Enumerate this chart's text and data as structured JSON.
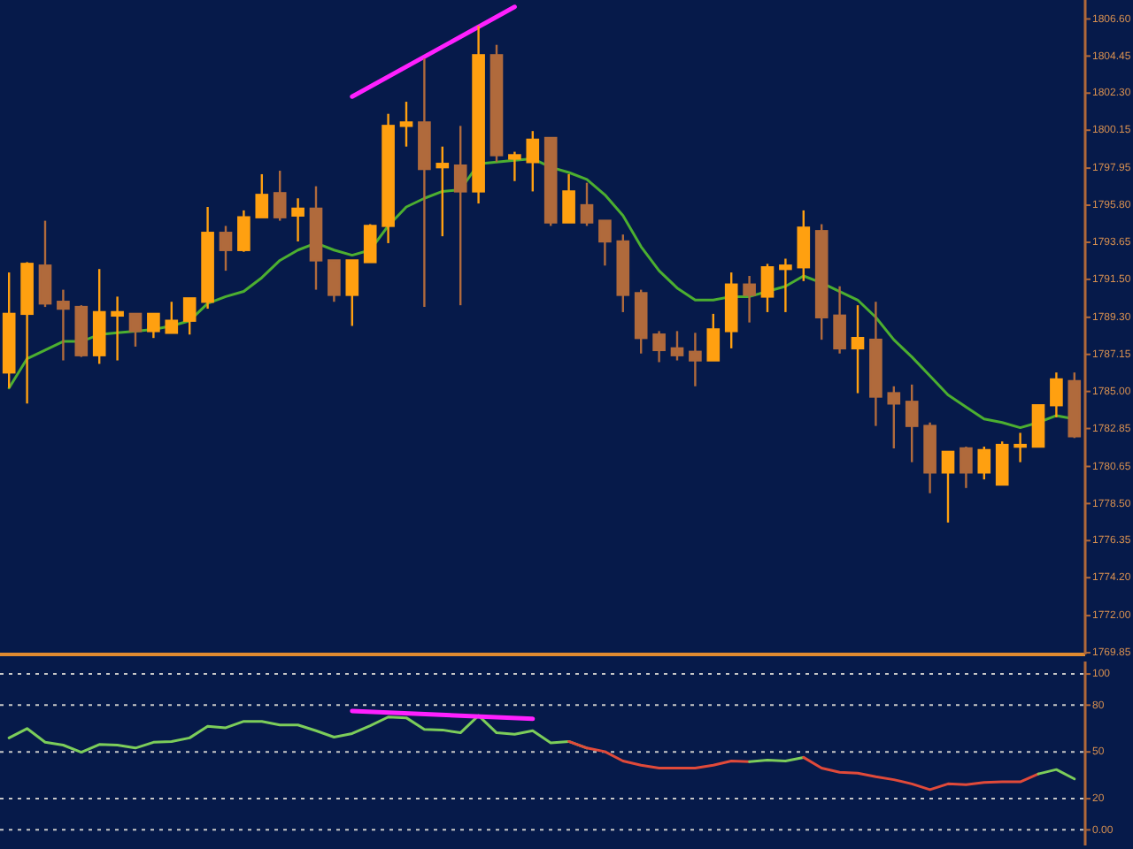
{
  "chart_data": [
    {
      "type": "candlestick",
      "categories": [
        null,
        null,
        null,
        null,
        null,
        null,
        null,
        null,
        null,
        null,
        null,
        null,
        null,
        null,
        null,
        null,
        null,
        null,
        null,
        null,
        null,
        null,
        null,
        null,
        null,
        null,
        null,
        null,
        null,
        null,
        null,
        null,
        null,
        null,
        null,
        null,
        null,
        null,
        null,
        null,
        null,
        null,
        null,
        null,
        null,
        null,
        null,
        null,
        null,
        null,
        null,
        null,
        null,
        null,
        null,
        null,
        null,
        null,
        null,
        null
      ],
      "ylim": [
        1769.75,
        1807.7
      ],
      "tick_labels": "y",
      "yticks": [
        {
          "value": 1806.6,
          "label": "1806.60"
        },
        {
          "value": 1804.45,
          "label": "1804.45"
        },
        {
          "value": 1802.3,
          "label": "1802.30"
        },
        {
          "value": 1800.15,
          "label": "1800.15"
        },
        {
          "value": 1797.95,
          "label": "1797.95"
        },
        {
          "value": 1795.8,
          "label": "1795.80"
        },
        {
          "value": 1793.65,
          "label": "1793.65"
        },
        {
          "value": 1791.5,
          "label": "1791.50"
        },
        {
          "value": 1789.3,
          "label": "1789.30"
        },
        {
          "value": 1787.15,
          "label": "1787.15"
        },
        {
          "value": 1785,
          "label": "1785.00"
        },
        {
          "value": 1782.85,
          "label": "1782.85"
        },
        {
          "value": 1780.65,
          "label": "1780.65"
        },
        {
          "value": 1778.5,
          "label": "1778.50"
        },
        {
          "value": 1776.35,
          "label": "1776.35"
        },
        {
          "value": 1774.2,
          "label": "1774.20"
        },
        {
          "value": 1772,
          "label": "1772.00"
        },
        {
          "value": 1769.85,
          "label": "1769.85"
        }
      ],
      "ohlc": [
        [
          1786.1,
          1791.9,
          1785.2,
          1789.5
        ],
        [
          1789.5,
          1792.5,
          1784.3,
          1792.4
        ],
        [
          1792.3,
          1794.9,
          1789.9,
          1790.1
        ],
        [
          1790.2,
          1790.9,
          1786.8,
          1789.8
        ],
        [
          1789.9,
          1790.0,
          1787.0,
          1787.1
        ],
        [
          1787.1,
          1792.1,
          1786.6,
          1789.6
        ],
        [
          1789.4,
          1790.5,
          1786.8,
          1789.6
        ],
        [
          1789.5,
          1789.5,
          1787.6,
          1788.5
        ],
        [
          1788.5,
          1789.5,
          1788.1,
          1789.5
        ],
        [
          1788.4,
          1790.2,
          1788.4,
          1789.1
        ],
        [
          1789.1,
          1790.4,
          1788.3,
          1790.4
        ],
        [
          1790.2,
          1795.7,
          1789.8,
          1794.2
        ],
        [
          1794.2,
          1794.6,
          1792.0,
          1793.2
        ],
        [
          1793.2,
          1795.5,
          1793.1,
          1795.1
        ],
        [
          1795.1,
          1797.6,
          1795.1,
          1796.4
        ],
        [
          1796.5,
          1797.8,
          1794.9,
          1795.1
        ],
        [
          1795.2,
          1796.2,
          1793.7,
          1795.6
        ],
        [
          1795.6,
          1796.9,
          1790.9,
          1792.6
        ],
        [
          1792.6,
          1792.6,
          1790.2,
          1790.6
        ],
        [
          1790.6,
          1792.6,
          1788.8,
          1792.6
        ],
        [
          1792.5,
          1794.7,
          1792.5,
          1794.6
        ],
        [
          1794.6,
          1801.1,
          1793.6,
          1800.4
        ],
        [
          1800.4,
          1801.8,
          1799.2,
          1800.6
        ],
        [
          1800.6,
          1804.3,
          1789.9,
          1797.9
        ],
        [
          1798.0,
          1799.2,
          1794.0,
          1798.2
        ],
        [
          1798.1,
          1800.4,
          1790.0,
          1796.6
        ],
        [
          1796.6,
          1806.2,
          1795.9,
          1804.5
        ],
        [
          1804.5,
          1805.1,
          1798.3,
          1798.7
        ],
        [
          1798.5,
          1798.9,
          1797.2,
          1798.7
        ],
        [
          1798.3,
          1800.1,
          1796.6,
          1799.6
        ],
        [
          1799.7,
          1799.7,
          1794.6,
          1794.8
        ],
        [
          1794.8,
          1797.6,
          1794.8,
          1796.6
        ],
        [
          1795.8,
          1797.1,
          1794.6,
          1794.8
        ],
        [
          1794.9,
          1794.9,
          1792.3,
          1793.7
        ],
        [
          1793.7,
          1794.1,
          1789.6,
          1790.6
        ],
        [
          1790.7,
          1790.9,
          1787.2,
          1788.1
        ],
        [
          1788.3,
          1788.5,
          1786.7,
          1787.4
        ],
        [
          1787.5,
          1788.5,
          1786.8,
          1787.1
        ],
        [
          1787.3,
          1788.4,
          1785.3,
          1786.8
        ],
        [
          1786.8,
          1789.5,
          1786.8,
          1788.6
        ],
        [
          1788.5,
          1791.9,
          1787.5,
          1791.2
        ],
        [
          1791.2,
          1791.7,
          1789.0,
          1790.6
        ],
        [
          1790.5,
          1792.4,
          1789.6,
          1792.2
        ],
        [
          1792.1,
          1792.7,
          1789.6,
          1792.3
        ],
        [
          1792.2,
          1795.5,
          1791.4,
          1794.5
        ],
        [
          1794.3,
          1794.7,
          1788.0,
          1789.3
        ],
        [
          1789.4,
          1791.1,
          1787.2,
          1787.5
        ],
        [
          1787.5,
          1790.0,
          1784.9,
          1788.1
        ],
        [
          1788.0,
          1790.2,
          1783.0,
          1784.7
        ],
        [
          1784.9,
          1785.3,
          1781.7,
          1784.3
        ],
        [
          1784.4,
          1785.4,
          1780.9,
          1783.0
        ],
        [
          1783.0,
          1783.2,
          1779.1,
          1780.3
        ],
        [
          1780.3,
          1781.5,
          1777.4,
          1781.5
        ],
        [
          1781.7,
          1781.8,
          1779.4,
          1780.3
        ],
        [
          1780.3,
          1781.8,
          1779.9,
          1781.6
        ],
        [
          1779.6,
          1782.1,
          1779.6,
          1781.9
        ],
        [
          1781.8,
          1782.6,
          1780.9,
          1781.9
        ],
        [
          1781.8,
          1784.2,
          1781.8,
          1784.2
        ],
        [
          1784.2,
          1786.1,
          1783.5,
          1785.7
        ],
        [
          1785.6,
          1786.1,
          1782.3,
          1782.4
        ]
      ],
      "colors": [
        "#ffa010",
        "#ffa010",
        "#b06a3c",
        "#b06a3c",
        "#b06a3c",
        "#ffa010",
        "#ffa010",
        "#b06a3c",
        "#ffa010",
        "#ffa010",
        "#ffa010",
        "#ffa010",
        "#b06a3c",
        "#ffa010",
        "#ffa010",
        "#b06a3c",
        "#ffa010",
        "#b06a3c",
        "#b06a3c",
        "#ffa010",
        "#ffa010",
        "#ffa010",
        "#ffa010",
        "#b06a3c",
        "#ffa010",
        "#b06a3c",
        "#ffa010",
        "#b06a3c",
        "#ffa010",
        "#ffa010",
        "#b06a3c",
        "#ffa010",
        "#b06a3c",
        "#b06a3c",
        "#b06a3c",
        "#b06a3c",
        "#b06a3c",
        "#b06a3c",
        "#b06a3c",
        "#ffa010",
        "#ffa010",
        "#b06a3c",
        "#ffa010",
        "#ffa010",
        "#ffa010",
        "#b06a3c",
        "#b06a3c",
        "#ffa010",
        "#b06a3c",
        "#b06a3c",
        "#b06a3c",
        "#b06a3c",
        "#ffa010",
        "#b06a3c",
        "#ffa010",
        "#ffa010",
        "#ffa010",
        "#ffa010",
        "#ffa010",
        "#b06a3c"
      ],
      "series": [
        {
          "type": "line",
          "color": "#4caf30",
          "values": [
            1785.2,
            1786.9,
            1787.4,
            1787.9,
            1787.9,
            1788.3,
            1788.4,
            1788.5,
            1788.6,
            1788.8,
            1789.1,
            1790.1,
            1790.5,
            1790.8,
            1791.6,
            1792.6,
            1793.2,
            1793.6,
            1793.2,
            1792.9,
            1793.2,
            1794.6,
            1795.7,
            1796.2,
            1796.6,
            1796.7,
            1798.2,
            1798.3,
            1798.4,
            1798.5,
            1798.0,
            1797.7,
            1797.3,
            1796.4,
            1795.2,
            1793.4,
            1792.0,
            1791.0,
            1790.3,
            1790.3,
            1790.5,
            1790.5,
            1790.8,
            1791.1,
            1791.7,
            1791.3,
            1790.8,
            1790.3,
            1789.3,
            1788.0,
            1787.0,
            1785.9,
            1784.8,
            1784.1,
            1783.4,
            1783.2,
            1782.9,
            1783.2,
            1783.6,
            1783.4
          ]
        },
        {
          "type": "line",
          "color": "#ff20ff",
          "values": [
            null,
            null,
            null,
            null,
            null,
            null,
            null,
            null,
            null,
            null,
            null,
            null,
            null,
            null,
            null,
            null,
            null,
            null,
            null,
            1802.1,
            null,
            null,
            null,
            null,
            null,
            null,
            null,
            null,
            1807.3,
            null,
            null,
            null,
            null,
            null,
            null,
            null,
            null,
            null,
            null,
            null,
            null,
            null,
            null,
            null,
            null,
            null,
            null,
            null,
            null,
            null,
            null,
            null,
            null,
            null,
            null,
            null,
            null,
            null,
            null,
            null
          ]
        }
      ]
    },
    {
      "type": "line",
      "categories": [
        null,
        null,
        null,
        null,
        null,
        null,
        null,
        null,
        null,
        null,
        null,
        null,
        null,
        null,
        null,
        null,
        null,
        null,
        null,
        null,
        null,
        null,
        null,
        null,
        null,
        null,
        null,
        null,
        null,
        null,
        null,
        null,
        null,
        null,
        null,
        null,
        null,
        null,
        null,
        null,
        null,
        null,
        null,
        null,
        null,
        null,
        null,
        null,
        null,
        null,
        null,
        null,
        null,
        null,
        null,
        null,
        null,
        null,
        null,
        null
      ],
      "ylim": [
        -10,
        108
      ],
      "tick_labels": "y",
      "grid": "y",
      "yticks": [
        {
          "value": 0,
          "label": "0.00"
        },
        20,
        50,
        80,
        100
      ],
      "series": [
        {
          "color": "#7ccd5a",
          "values": [
            59.0,
            65.0,
            56.2,
            54.4,
            49.8,
            54.8,
            54.4,
            52.5,
            56.2,
            56.7,
            59.0,
            66.4,
            65.5,
            69.6,
            69.6,
            67.3,
            67.3,
            63.6,
            59.5,
            61.8,
            66.8,
            72.4,
            71.9,
            64.5,
            64.1,
            62.3,
            73.3,
            62.3,
            61.3,
            63.6,
            55.8,
            56.7,
            52.5,
            null,
            null,
            null,
            null,
            null,
            null,
            null,
            null,
            null,
            null,
            null,
            null,
            null,
            null,
            null,
            null,
            null,
            null,
            null,
            null,
            null,
            null,
            null,
            null,
            null,
            null,
            null
          ]
        },
        {
          "color": "#e04a3a",
          "values": [
            null,
            null,
            null,
            null,
            null,
            null,
            null,
            null,
            null,
            null,
            null,
            null,
            null,
            null,
            null,
            null,
            null,
            null,
            null,
            null,
            null,
            null,
            null,
            null,
            null,
            null,
            null,
            null,
            null,
            null,
            null,
            56.7,
            52.5,
            50.2,
            44.2,
            41.5,
            39.6,
            39.6,
            39.6,
            41.5,
            44.2,
            43.8,
            null,
            null,
            null,
            null,
            null,
            null,
            null,
            null,
            null,
            null,
            null,
            null,
            null,
            null,
            null,
            null,
            null,
            null
          ]
        },
        {
          "color": "#7ccd5a",
          "values": [
            null,
            null,
            null,
            null,
            null,
            null,
            null,
            null,
            null,
            null,
            null,
            null,
            null,
            null,
            null,
            null,
            null,
            null,
            null,
            null,
            null,
            null,
            null,
            null,
            null,
            null,
            null,
            null,
            null,
            null,
            null,
            null,
            null,
            null,
            null,
            null,
            null,
            null,
            null,
            null,
            null,
            43.8,
            44.7,
            44.2,
            46.5,
            null,
            null,
            null,
            null,
            null,
            null,
            null,
            null,
            null,
            null,
            null,
            null,
            null,
            null,
            null
          ]
        },
        {
          "color": "#e04a3a",
          "values": [
            null,
            null,
            null,
            null,
            null,
            null,
            null,
            null,
            null,
            null,
            null,
            null,
            null,
            null,
            null,
            null,
            null,
            null,
            null,
            null,
            null,
            null,
            null,
            null,
            null,
            null,
            null,
            null,
            null,
            null,
            null,
            null,
            null,
            null,
            null,
            null,
            null,
            null,
            null,
            null,
            null,
            null,
            null,
            null,
            46.5,
            39.6,
            36.9,
            36.4,
            34.1,
            32.2,
            29.5,
            25.8,
            29.5,
            29.0,
            30.4,
            30.8,
            30.8,
            35.9,
            null,
            null
          ]
        },
        {
          "color": "#7ccd5a",
          "values": [
            null,
            null,
            null,
            null,
            null,
            null,
            null,
            null,
            null,
            null,
            null,
            null,
            null,
            null,
            null,
            null,
            null,
            null,
            null,
            null,
            null,
            null,
            null,
            null,
            null,
            null,
            null,
            null,
            null,
            null,
            null,
            null,
            null,
            null,
            null,
            null,
            null,
            null,
            null,
            null,
            null,
            null,
            null,
            null,
            null,
            null,
            null,
            null,
            null,
            null,
            null,
            null,
            null,
            null,
            null,
            null,
            null,
            35.9,
            38.7,
            32.7
          ]
        },
        {
          "color": "#ff20ff",
          "values": [
            null,
            null,
            null,
            null,
            null,
            null,
            null,
            null,
            null,
            null,
            null,
            null,
            null,
            null,
            null,
            null,
            null,
            null,
            null,
            76.3,
            null,
            null,
            null,
            null,
            null,
            null,
            null,
            null,
            null,
            71.2,
            null,
            null,
            null,
            null,
            null,
            null,
            null,
            null,
            null,
            null,
            null,
            null,
            null,
            null,
            null,
            null,
            null,
            null,
            null,
            null,
            null,
            null,
            null,
            null,
            null,
            null,
            null,
            null,
            null,
            null
          ]
        }
      ]
    }
  ]
}
